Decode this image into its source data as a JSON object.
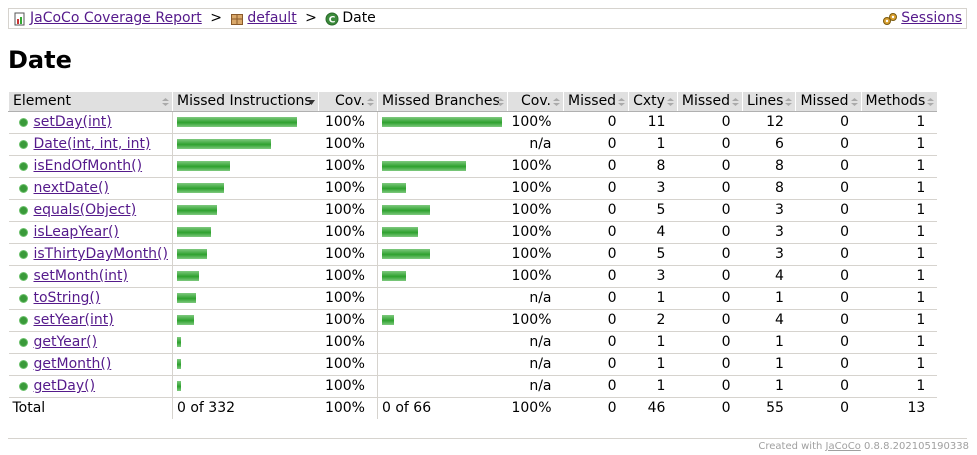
{
  "breadcrumb": {
    "report_link": "JaCoCo Coverage Report",
    "sep1": ">",
    "package_link": "default",
    "sep2": ">",
    "current": "Date",
    "sessions": "Sessions"
  },
  "title": "Date",
  "table": {
    "headers": [
      "Element",
      "Missed Instructions",
      "Cov.",
      "Missed Branches",
      "Cov.",
      "Missed",
      "Cxty",
      "Missed",
      "Lines",
      "Missed",
      "Methods"
    ],
    "rows": [
      {
        "name": "setDay(int)",
        "instr_bar": 1.0,
        "instr_cov": "100%",
        "branch_bar": 1.0,
        "branch_cov": "100%",
        "missed_cxty": "0",
        "cxty": "11",
        "missed_lines": "0",
        "lines": "12",
        "missed_methods": "0",
        "methods": "1"
      },
      {
        "name": "Date(int, int, int)",
        "instr_bar": 0.78,
        "instr_cov": "100%",
        "branch_bar": 0,
        "branch_cov": "n/a",
        "missed_cxty": "0",
        "cxty": "1",
        "missed_lines": "0",
        "lines": "6",
        "missed_methods": "0",
        "methods": "1"
      },
      {
        "name": "isEndOfMonth()",
        "instr_bar": 0.44,
        "instr_cov": "100%",
        "branch_bar": 0.7,
        "branch_cov": "100%",
        "missed_cxty": "0",
        "cxty": "8",
        "missed_lines": "0",
        "lines": "8",
        "missed_methods": "0",
        "methods": "1"
      },
      {
        "name": "nextDate()",
        "instr_bar": 0.39,
        "instr_cov": "100%",
        "branch_bar": 0.2,
        "branch_cov": "100%",
        "missed_cxty": "0",
        "cxty": "3",
        "missed_lines": "0",
        "lines": "8",
        "missed_methods": "0",
        "methods": "1"
      },
      {
        "name": "equals(Object)",
        "instr_bar": 0.33,
        "instr_cov": "100%",
        "branch_bar": 0.4,
        "branch_cov": "100%",
        "missed_cxty": "0",
        "cxty": "5",
        "missed_lines": "0",
        "lines": "3",
        "missed_methods": "0",
        "methods": "1"
      },
      {
        "name": "isLeapYear()",
        "instr_bar": 0.28,
        "instr_cov": "100%",
        "branch_bar": 0.3,
        "branch_cov": "100%",
        "missed_cxty": "0",
        "cxty": "4",
        "missed_lines": "0",
        "lines": "3",
        "missed_methods": "0",
        "methods": "1"
      },
      {
        "name": "isThirtyDayMonth()",
        "instr_bar": 0.25,
        "instr_cov": "100%",
        "branch_bar": 0.4,
        "branch_cov": "100%",
        "missed_cxty": "0",
        "cxty": "5",
        "missed_lines": "0",
        "lines": "3",
        "missed_methods": "0",
        "methods": "1"
      },
      {
        "name": "setMonth(int)",
        "instr_bar": 0.18,
        "instr_cov": "100%",
        "branch_bar": 0.2,
        "branch_cov": "100%",
        "missed_cxty": "0",
        "cxty": "3",
        "missed_lines": "0",
        "lines": "4",
        "missed_methods": "0",
        "methods": "1"
      },
      {
        "name": "toString()",
        "instr_bar": 0.16,
        "instr_cov": "100%",
        "branch_bar": 0,
        "branch_cov": "n/a",
        "missed_cxty": "0",
        "cxty": "1",
        "missed_lines": "0",
        "lines": "1",
        "missed_methods": "0",
        "methods": "1"
      },
      {
        "name": "setYear(int)",
        "instr_bar": 0.14,
        "instr_cov": "100%",
        "branch_bar": 0.1,
        "branch_cov": "100%",
        "missed_cxty": "0",
        "cxty": "2",
        "missed_lines": "0",
        "lines": "4",
        "missed_methods": "0",
        "methods": "1"
      },
      {
        "name": "getYear()",
        "instr_bar": 0.03,
        "instr_cov": "100%",
        "branch_bar": 0,
        "branch_cov": "n/a",
        "missed_cxty": "0",
        "cxty": "1",
        "missed_lines": "0",
        "lines": "1",
        "missed_methods": "0",
        "methods": "1"
      },
      {
        "name": "getMonth()",
        "instr_bar": 0.03,
        "instr_cov": "100%",
        "branch_bar": 0,
        "branch_cov": "n/a",
        "missed_cxty": "0",
        "cxty": "1",
        "missed_lines": "0",
        "lines": "1",
        "missed_methods": "0",
        "methods": "1"
      },
      {
        "name": "getDay()",
        "instr_bar": 0.03,
        "instr_cov": "100%",
        "branch_bar": 0,
        "branch_cov": "n/a",
        "missed_cxty": "0",
        "cxty": "1",
        "missed_lines": "0",
        "lines": "1",
        "missed_methods": "0",
        "methods": "1"
      }
    ],
    "total": {
      "label": "Total",
      "instr": "0 of 332",
      "instr_cov": "100%",
      "branch": "0 of 66",
      "branch_cov": "100%",
      "missed_cxty": "0",
      "cxty": "46",
      "missed_lines": "0",
      "lines": "55",
      "missed_methods": "0",
      "methods": "13"
    }
  },
  "footer": {
    "prefix": "Created with",
    "link": "JaCoCo",
    "version": "0.8.8.202105190338"
  },
  "colors": {
    "bar_green": "#2ea12e",
    "header_bg": "#e0e0e0",
    "link": "#551a8b"
  }
}
